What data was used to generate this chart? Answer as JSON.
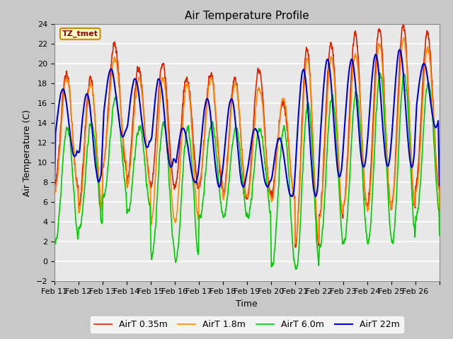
{
  "title": "Air Temperature Profile",
  "xlabel": "Time",
  "ylabel": "Air Temperature (C)",
  "ylim": [
    -2,
    24
  ],
  "yticks": [
    -2,
    0,
    2,
    4,
    6,
    8,
    10,
    12,
    14,
    16,
    18,
    20,
    22,
    24
  ],
  "plot_bg_color": "#e8e8e8",
  "fig_bg_color": "#c8c8c8",
  "annotation_text": "TZ_tmet",
  "annotation_color": "#8B0000",
  "annotation_bg": "#ffffcc",
  "annotation_border": "#cc8800",
  "series_colors": [
    "#dd2200",
    "#ff8800",
    "#00cc00",
    "#0000cc"
  ],
  "series_lw": [
    1.2,
    1.2,
    1.2,
    1.5
  ],
  "series_labels": [
    "AirT 0.35m",
    "AirT 1.8m",
    "AirT 6.0m",
    "AirT 22m"
  ],
  "xticklabels": [
    "Feb 11",
    "Feb 12",
    "Feb 13",
    "Feb 14",
    "Feb 15",
    "Feb 16",
    "Feb 17",
    "Feb 18",
    "Feb 19",
    "Feb 20",
    "Feb 21",
    "Feb 22",
    "Feb 23",
    "Feb 24",
    "Feb 25",
    "Feb 26"
  ],
  "days": 16,
  "points_per_day": 144
}
